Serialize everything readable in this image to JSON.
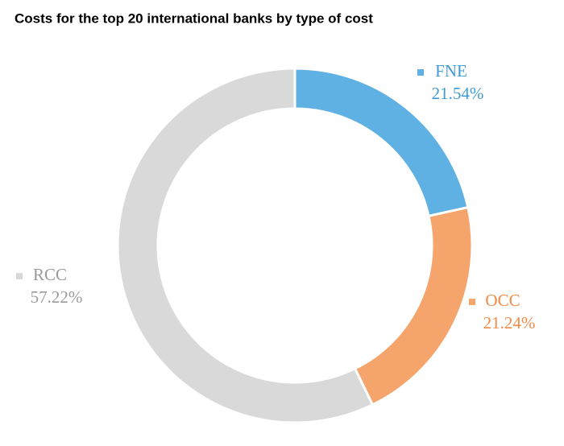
{
  "chart_data": {
    "type": "donut",
    "title": "Costs for the top 20 international banks by type of cost",
    "categories": [
      "FNE",
      "OCC",
      "RCC"
    ],
    "values": [
      21.54,
      21.24,
      57.22
    ],
    "value_labels": [
      "21.54%",
      "21.24%",
      "57.22%"
    ],
    "colors": [
      "#5fb0e3",
      "#f5a46b",
      "#d9d9d9"
    ]
  }
}
